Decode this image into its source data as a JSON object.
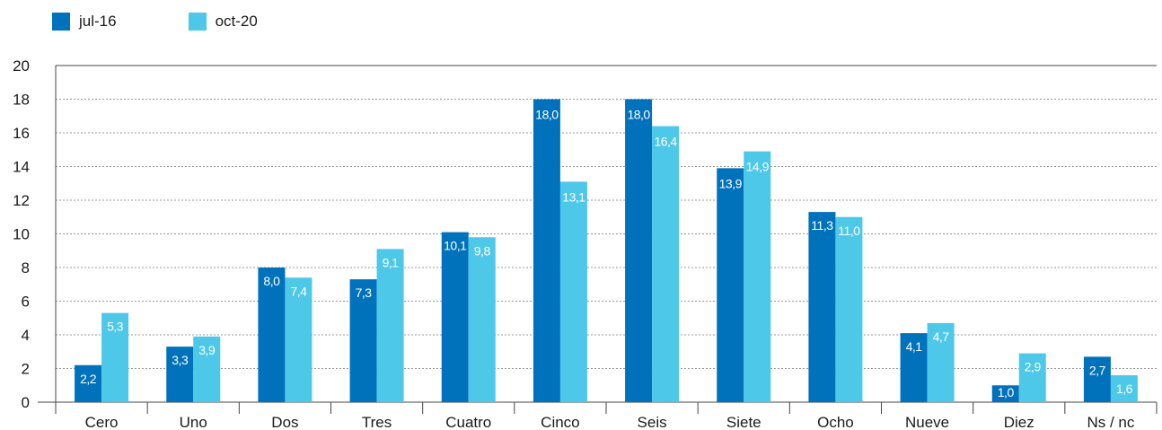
{
  "chart_data": {
    "type": "bar",
    "title": "",
    "xlabel": "",
    "ylabel": "",
    "ylim": [
      0,
      20
    ],
    "yticks": [
      0,
      2,
      4,
      6,
      8,
      10,
      12,
      14,
      16,
      18,
      20
    ],
    "grid": true,
    "legend_position": "top-left",
    "categories": [
      "Cero",
      "Uno",
      "Dos",
      "Tres",
      "Cuatro",
      "Cinco",
      "Seis",
      "Siete",
      "Ocho",
      "Nueve",
      "Diez",
      "Ns / nc"
    ],
    "series": [
      {
        "name": "jul-16",
        "color": "#0072bc",
        "values": [
          2.2,
          3.3,
          8.0,
          7.3,
          10.1,
          18.0,
          18.0,
          13.9,
          11.3,
          4.1,
          1.0,
          2.7
        ],
        "labels": [
          "2,2",
          "3,3",
          "8,0",
          "7,3",
          "10,1",
          "18,0",
          "18,0",
          "13,9",
          "11,3",
          "4,1",
          "1,0",
          "2,7"
        ]
      },
      {
        "name": "oct-20",
        "color": "#4dc8e9",
        "values": [
          5.3,
          3.9,
          7.4,
          9.1,
          9.8,
          13.1,
          16.4,
          14.9,
          11.0,
          4.7,
          2.9,
          1.6
        ],
        "labels": [
          "5,3",
          "3,9",
          "7,4",
          "9,1",
          "9,8",
          "13,1",
          "16,4",
          "14,9",
          "11,0",
          "4,7",
          "2,9",
          "1,6"
        ]
      }
    ]
  }
}
